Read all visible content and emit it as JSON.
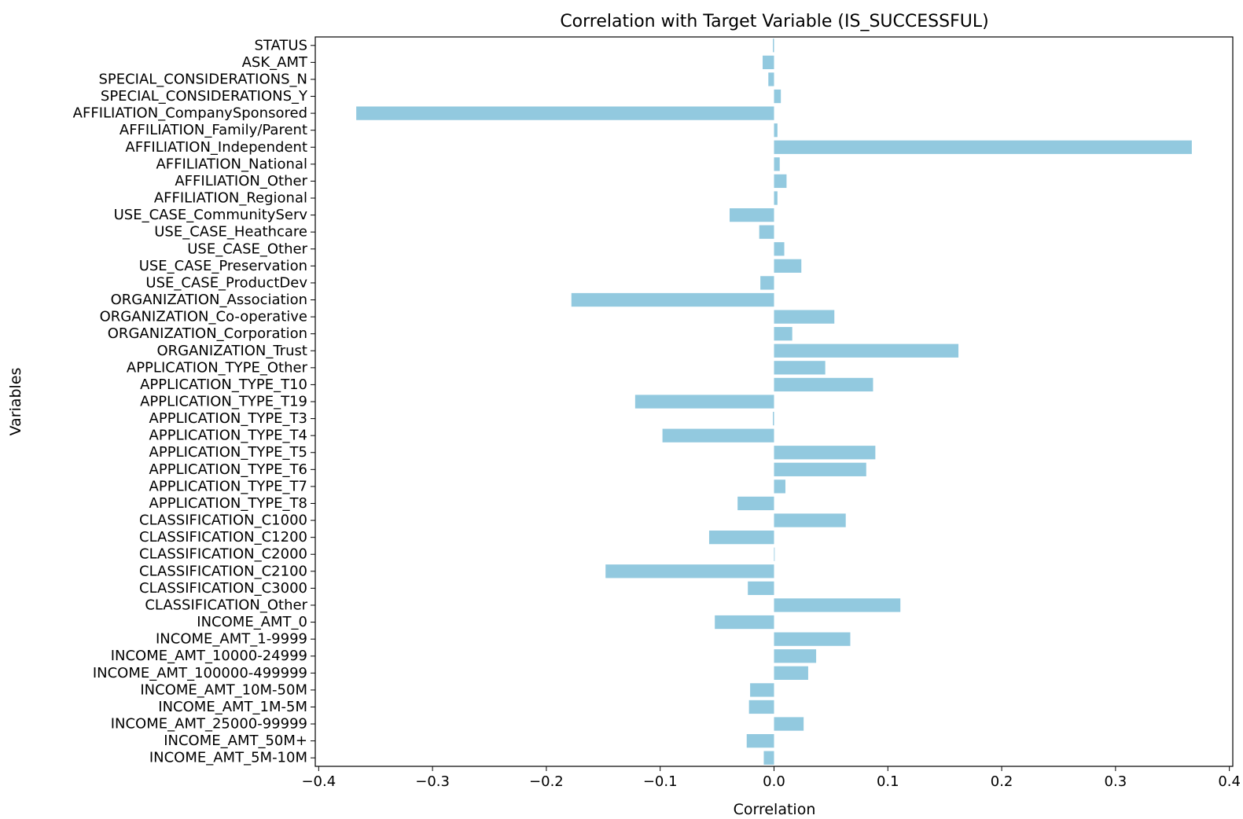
{
  "chart_data": {
    "type": "bar",
    "orientation": "horizontal",
    "title": "Correlation with Target Variable (IS_SUCCESSFUL)",
    "xlabel": "Correlation",
    "ylabel": "Variables",
    "xlim": [
      -0.403,
      0.403
    ],
    "xticks": [
      -0.4,
      -0.3,
      -0.2,
      -0.1,
      0.0,
      0.1,
      0.2,
      0.3,
      0.4
    ],
    "xtick_labels": [
      "−0.4",
      "−0.3",
      "−0.2",
      "−0.1",
      "0.0",
      "0.1",
      "0.2",
      "0.3",
      "0.4"
    ],
    "grid": false,
    "bar_color": "#92c9df",
    "categories": [
      "STATUS",
      "ASK_AMT",
      "SPECIAL_CONSIDERATIONS_N",
      "SPECIAL_CONSIDERATIONS_Y",
      "AFFILIATION_CompanySponsored",
      "AFFILIATION_Family/Parent",
      "AFFILIATION_Independent",
      "AFFILIATION_National",
      "AFFILIATION_Other",
      "AFFILIATION_Regional",
      "USE_CASE_CommunityServ",
      "USE_CASE_Heathcare",
      "USE_CASE_Other",
      "USE_CASE_Preservation",
      "USE_CASE_ProductDev",
      "ORGANIZATION_Association",
      "ORGANIZATION_Co-operative",
      "ORGANIZATION_Corporation",
      "ORGANIZATION_Trust",
      "APPLICATION_TYPE_Other",
      "APPLICATION_TYPE_T10",
      "APPLICATION_TYPE_T19",
      "APPLICATION_TYPE_T3",
      "APPLICATION_TYPE_T4",
      "APPLICATION_TYPE_T5",
      "APPLICATION_TYPE_T6",
      "APPLICATION_TYPE_T7",
      "APPLICATION_TYPE_T8",
      "CLASSIFICATION_C1000",
      "CLASSIFICATION_C1200",
      "CLASSIFICATION_C2000",
      "CLASSIFICATION_C2100",
      "CLASSIFICATION_C3000",
      "CLASSIFICATION_Other",
      "INCOME_AMT_0",
      "INCOME_AMT_1-9999",
      "INCOME_AMT_10000-24999",
      "INCOME_AMT_100000-499999",
      "INCOME_AMT_10M-50M",
      "INCOME_AMT_1M-5M",
      "INCOME_AMT_25000-99999",
      "INCOME_AMT_50M+",
      "INCOME_AMT_5M-10M"
    ],
    "values": [
      -0.001,
      -0.01,
      -0.005,
      0.006,
      -0.367,
      0.003,
      0.367,
      0.005,
      0.011,
      0.003,
      -0.039,
      -0.013,
      0.009,
      0.024,
      -0.012,
      -0.178,
      0.053,
      0.016,
      0.162,
      0.045,
      0.087,
      -0.122,
      -0.001,
      -0.098,
      0.089,
      0.081,
      0.01,
      -0.032,
      0.063,
      -0.057,
      0.0,
      -0.148,
      -0.023,
      0.111,
      -0.052,
      0.067,
      0.037,
      0.03,
      -0.021,
      -0.022,
      0.026,
      -0.024,
      -0.009
    ]
  }
}
